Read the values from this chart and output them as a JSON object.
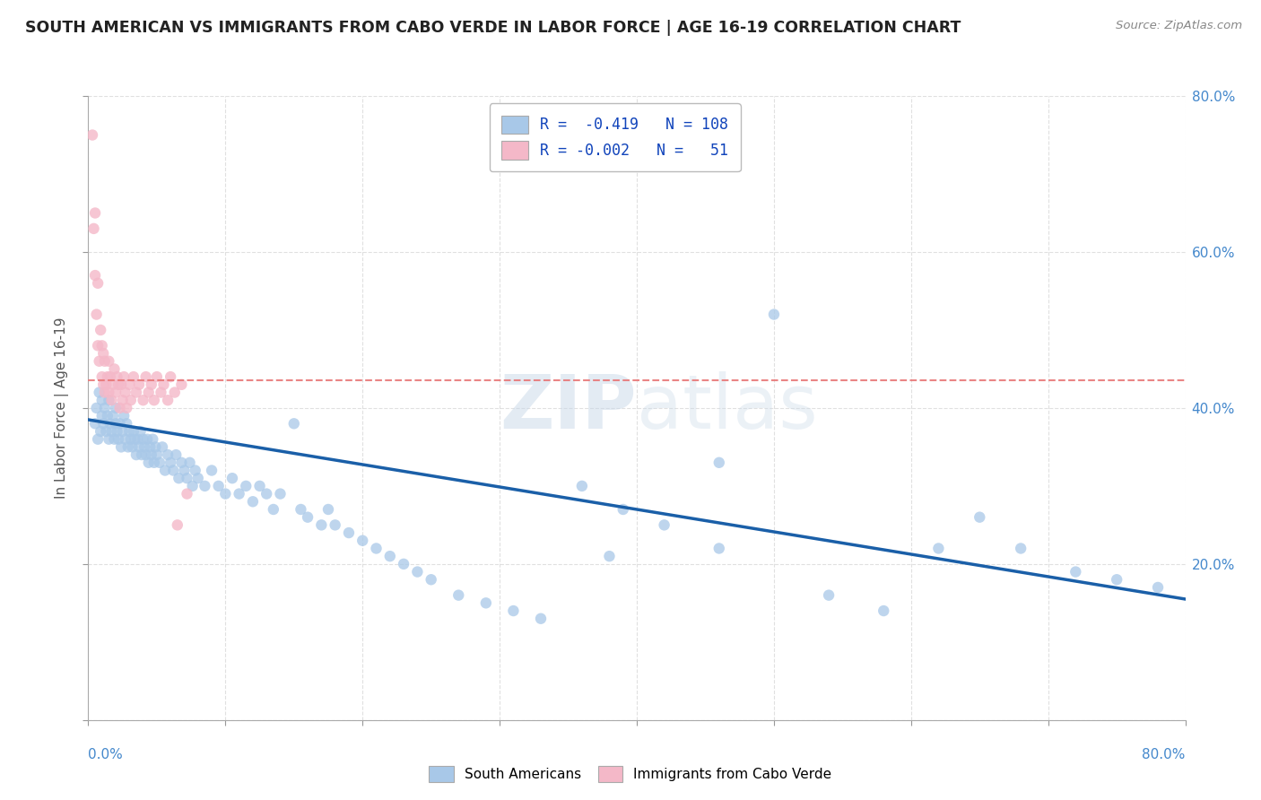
{
  "title": "SOUTH AMERICAN VS IMMIGRANTS FROM CABO VERDE IN LABOR FORCE | AGE 16-19 CORRELATION CHART",
  "source": "Source: ZipAtlas.com",
  "ylabel": "In Labor Force | Age 16-19",
  "watermark": "ZIPatlas",
  "xlim": [
    0.0,
    0.8
  ],
  "ylim": [
    0.0,
    0.8
  ],
  "blue_color": "#a8c8e8",
  "pink_color": "#f4b8c8",
  "blue_line_color": "#1a5fa8",
  "pink_line_color": "#e87878",
  "title_color": "#222222",
  "axis_color": "#4488cc",
  "legend_text_color": "#1144bb",
  "grid_color": "#cccccc",
  "background_color": "#ffffff",
  "blue_scatter_x": [
    0.005,
    0.006,
    0.007,
    0.008,
    0.009,
    0.01,
    0.01,
    0.011,
    0.012,
    0.013,
    0.014,
    0.015,
    0.015,
    0.016,
    0.017,
    0.018,
    0.019,
    0.02,
    0.02,
    0.021,
    0.022,
    0.023,
    0.024,
    0.025,
    0.026,
    0.027,
    0.028,
    0.029,
    0.03,
    0.031,
    0.032,
    0.033,
    0.034,
    0.035,
    0.036,
    0.037,
    0.038,
    0.039,
    0.04,
    0.041,
    0.042,
    0.043,
    0.044,
    0.045,
    0.046,
    0.047,
    0.048,
    0.049,
    0.05,
    0.052,
    0.054,
    0.056,
    0.058,
    0.06,
    0.062,
    0.064,
    0.066,
    0.068,
    0.07,
    0.072,
    0.074,
    0.076,
    0.078,
    0.08,
    0.085,
    0.09,
    0.095,
    0.1,
    0.105,
    0.11,
    0.115,
    0.12,
    0.125,
    0.13,
    0.135,
    0.14,
    0.15,
    0.155,
    0.16,
    0.17,
    0.175,
    0.18,
    0.19,
    0.2,
    0.21,
    0.22,
    0.23,
    0.24,
    0.25,
    0.27,
    0.29,
    0.31,
    0.33,
    0.36,
    0.39,
    0.42,
    0.46,
    0.5,
    0.54,
    0.58,
    0.46,
    0.38,
    0.62,
    0.65,
    0.68,
    0.72,
    0.75,
    0.78
  ],
  "blue_scatter_y": [
    0.38,
    0.4,
    0.36,
    0.42,
    0.37,
    0.39,
    0.41,
    0.38,
    0.4,
    0.37,
    0.39,
    0.36,
    0.41,
    0.38,
    0.37,
    0.39,
    0.36,
    0.38,
    0.4,
    0.37,
    0.36,
    0.38,
    0.35,
    0.37,
    0.39,
    0.36,
    0.38,
    0.35,
    0.37,
    0.36,
    0.35,
    0.37,
    0.36,
    0.34,
    0.36,
    0.35,
    0.37,
    0.34,
    0.36,
    0.35,
    0.34,
    0.36,
    0.33,
    0.35,
    0.34,
    0.36,
    0.33,
    0.35,
    0.34,
    0.33,
    0.35,
    0.32,
    0.34,
    0.33,
    0.32,
    0.34,
    0.31,
    0.33,
    0.32,
    0.31,
    0.33,
    0.3,
    0.32,
    0.31,
    0.3,
    0.32,
    0.3,
    0.29,
    0.31,
    0.29,
    0.3,
    0.28,
    0.3,
    0.29,
    0.27,
    0.29,
    0.38,
    0.27,
    0.26,
    0.25,
    0.27,
    0.25,
    0.24,
    0.23,
    0.22,
    0.21,
    0.2,
    0.19,
    0.18,
    0.16,
    0.15,
    0.14,
    0.13,
    0.3,
    0.27,
    0.25,
    0.22,
    0.52,
    0.16,
    0.14,
    0.33,
    0.21,
    0.22,
    0.26,
    0.22,
    0.19,
    0.18,
    0.17
  ],
  "pink_scatter_x": [
    0.003,
    0.004,
    0.005,
    0.005,
    0.006,
    0.007,
    0.007,
    0.008,
    0.009,
    0.01,
    0.01,
    0.011,
    0.011,
    0.012,
    0.012,
    0.013,
    0.014,
    0.015,
    0.015,
    0.016,
    0.017,
    0.018,
    0.019,
    0.02,
    0.021,
    0.022,
    0.023,
    0.024,
    0.025,
    0.026,
    0.027,
    0.028,
    0.03,
    0.031,
    0.033,
    0.035,
    0.037,
    0.04,
    0.042,
    0.044,
    0.046,
    0.048,
    0.05,
    0.053,
    0.055,
    0.058,
    0.06,
    0.063,
    0.065,
    0.068,
    0.072
  ],
  "pink_scatter_y": [
    0.75,
    0.63,
    0.65,
    0.57,
    0.52,
    0.48,
    0.56,
    0.46,
    0.5,
    0.44,
    0.48,
    0.43,
    0.47,
    0.42,
    0.46,
    0.43,
    0.44,
    0.42,
    0.46,
    0.44,
    0.41,
    0.43,
    0.45,
    0.42,
    0.44,
    0.43,
    0.4,
    0.43,
    0.41,
    0.44,
    0.42,
    0.4,
    0.43,
    0.41,
    0.44,
    0.42,
    0.43,
    0.41,
    0.44,
    0.42,
    0.43,
    0.41,
    0.44,
    0.42,
    0.43,
    0.41,
    0.44,
    0.42,
    0.25,
    0.43,
    0.29
  ],
  "blue_trend_x": [
    0.0,
    0.8
  ],
  "blue_trend_y": [
    0.385,
    0.155
  ],
  "pink_trend_x": [
    0.0,
    0.8
  ],
  "pink_trend_y": [
    0.435,
    0.435
  ]
}
